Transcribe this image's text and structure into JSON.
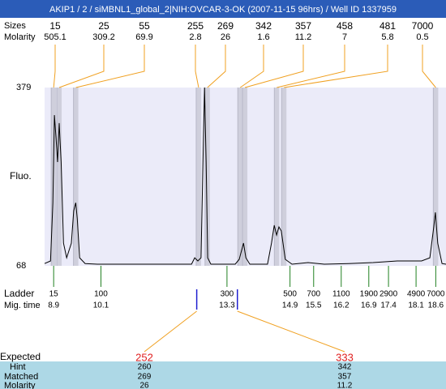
{
  "title": "AKIP1 / 2 / siMBNL1_global_2|NIH:OVCAR-3-OK (2007-11-15 96hrs) / Well ID 1337959",
  "chart_data": {
    "type": "electropherogram",
    "y_label": "Fluo.",
    "ylim": [
      68,
      379
    ],
    "yticks": [
      379,
      68
    ],
    "xlim": [
      8.67,
      18.86
    ],
    "trace_color": "#000000",
    "trace": {
      "x": [
        8.67,
        8.82,
        8.88,
        8.92,
        8.96,
        9.0,
        9.04,
        9.09,
        9.15,
        9.23,
        9.35,
        9.41,
        9.46,
        9.5,
        9.56,
        9.7,
        10.01,
        11.66,
        12.4,
        12.48,
        12.56,
        12.64,
        12.69,
        12.73,
        12.77,
        12.81,
        12.89,
        13.51,
        13.61,
        13.72,
        13.78,
        13.88,
        14.33,
        14.43,
        14.5,
        14.56,
        14.62,
        14.68,
        14.78,
        14.95,
        15.36,
        15.77,
        16.39,
        17.01,
        17.62,
        18.24,
        18.45,
        18.55,
        18.59,
        18.65,
        18.76,
        18.86
      ],
      "y": [
        72,
        76.5,
        178,
        331,
        291,
        249,
        317,
        249,
        107.6,
        82,
        107.6,
        164,
        178,
        150,
        82,
        72,
        70.8,
        70.8,
        70.8,
        82,
        76.5,
        82,
        249,
        379,
        249,
        82,
        70.8,
        70.8,
        79.3,
        107.6,
        82,
        70.8,
        70.8,
        107.6,
        138.7,
        121.7,
        135.9,
        128.8,
        79.3,
        70.8,
        73.7,
        70.8,
        72,
        73.7,
        76.5,
        76.5,
        82,
        135.9,
        161.3,
        107.6,
        72,
        70.8
      ]
    },
    "peaks": {
      "sizes_label": "Sizes",
      "molarity_label": "Molarity",
      "sizes": [
        15,
        25,
        55,
        255,
        269,
        342,
        357,
        458,
        481,
        7000
      ],
      "molarity": [
        505.1,
        309.2,
        69.9,
        2.8,
        26,
        1.6,
        11.2,
        7,
        5.8,
        0.5
      ]
    },
    "ladder": {
      "label": "Ladder",
      "time_label": "Mig. time",
      "sizes": [
        15,
        100,
        300,
        500,
        700,
        1100,
        1900,
        2900,
        4900,
        7000
      ],
      "times": [
        8.9,
        10.1,
        13.3,
        14.9,
        15.5,
        16.2,
        16.9,
        17.4,
        18.1,
        18.6
      ]
    },
    "expected": {
      "label": "Expected",
      "values": [
        252,
        333
      ],
      "hint_label": "Hint",
      "hint": [
        260,
        342
      ],
      "matched_label": "Matched",
      "matched": [
        269,
        357
      ],
      "molarity_label": "Molarity",
      "molarity": [
        26,
        11.2
      ]
    }
  }
}
